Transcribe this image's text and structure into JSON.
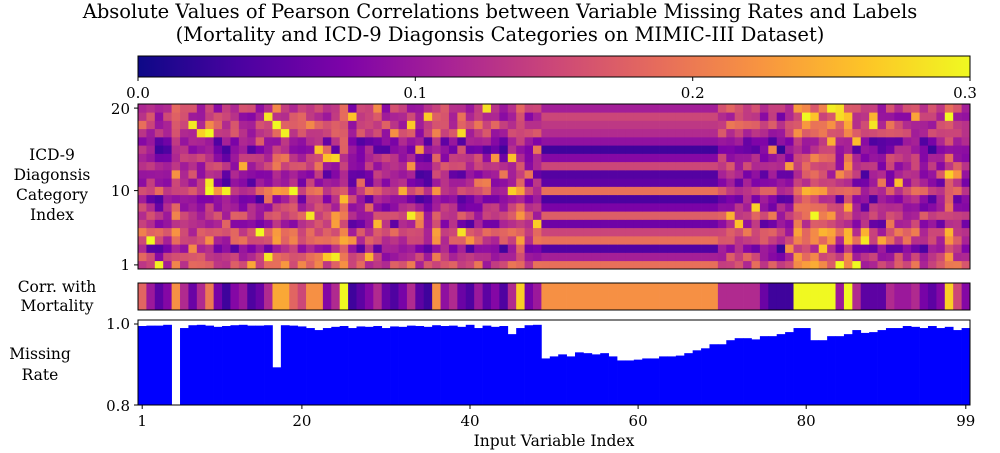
{
  "chart_data": {
    "type": "heatmap",
    "title": "Absolute Values of Pearson Correlations between Variable Missing Rates and Labels",
    "subtitle": "(Mortality and ICD-9 Diagonsis Categories on MIMIC-III Dataset)",
    "colormap": "plasma",
    "colorbar": {
      "min": 0.0,
      "max": 0.3,
      "ticks": [
        "0.0",
        "0.1",
        "0.2",
        "0.3"
      ]
    },
    "x_range": [
      1,
      99
    ],
    "xlabel": "Input Variable Index",
    "xticks": [
      "1",
      "20",
      "40",
      "60",
      "80",
      "99"
    ],
    "heatmap": {
      "ylabel_lines": [
        "ICD-9",
        "Diagonsis",
        "Category",
        "Index"
      ],
      "y_range": [
        1,
        20
      ],
      "yticks": [
        "1",
        "10",
        "20"
      ],
      "n_rows": 20,
      "n_cols": 99
    },
    "mortality": {
      "label_lines": [
        "Corr. with",
        "Mortality"
      ],
      "values": [
        0.18,
        0.1,
        0.05,
        0.08,
        0.22,
        0.12,
        0.06,
        0.12,
        0.2,
        0.07,
        0.03,
        0.08,
        0.1,
        0.04,
        0.06,
        0.12,
        0.24,
        0.24,
        0.18,
        0.15,
        0.22,
        0.22,
        0.08,
        0.12,
        0.3,
        0.03,
        0.05,
        0.08,
        0.12,
        0.06,
        0.04,
        0.07,
        0.12,
        0.05,
        0.03,
        0.22,
        0.09,
        0.12,
        0.06,
        0.04,
        0.1,
        0.05,
        0.08,
        0.04,
        0.12,
        0.27,
        0.07,
        0.1,
        0.22,
        0.22,
        0.22,
        0.22,
        0.22,
        0.22,
        0.22,
        0.22,
        0.22,
        0.22,
        0.22,
        0.22,
        0.22,
        0.22,
        0.22,
        0.22,
        0.22,
        0.22,
        0.22,
        0.22,
        0.22,
        0.12,
        0.12,
        0.12,
        0.12,
        0.12,
        0.06,
        0.03,
        0.03,
        0.03,
        0.3,
        0.3,
        0.3,
        0.3,
        0.3,
        0.1,
        0.3,
        0.12,
        0.05,
        0.05,
        0.05,
        0.12,
        0.1,
        0.1,
        0.12,
        0.07,
        0.05,
        0.08,
        0.27,
        0.15,
        0.08
      ]
    },
    "missing_rate": {
      "label_lines": [
        "Missing",
        "Rate"
      ],
      "yticks": [
        "0.8",
        "1.0"
      ],
      "ylim": [
        0.8,
        1.0
      ],
      "color": "#0000ff",
      "values": [
        0.995,
        0.996,
        0.996,
        0.998,
        0.8,
        0.99,
        0.997,
        0.998,
        0.996,
        0.993,
        0.995,
        0.997,
        0.998,
        0.996,
        0.996,
        0.997,
        0.893,
        0.997,
        0.996,
        0.994,
        0.99,
        0.985,
        0.99,
        0.993,
        0.995,
        0.99,
        0.994,
        0.993,
        0.995,
        0.99,
        0.994,
        0.993,
        0.996,
        0.995,
        0.993,
        0.997,
        0.995,
        0.996,
        0.993,
        0.998,
        0.99,
        0.996,
        0.993,
        0.995,
        0.975,
        0.99,
        0.997,
        0.998,
        0.915,
        0.92,
        0.925,
        0.92,
        0.93,
        0.928,
        0.925,
        0.928,
        0.92,
        0.91,
        0.91,
        0.912,
        0.915,
        0.915,
        0.92,
        0.92,
        0.922,
        0.928,
        0.935,
        0.94,
        0.95,
        0.95,
        0.96,
        0.965,
        0.965,
        0.962,
        0.97,
        0.97,
        0.975,
        0.98,
        0.99,
        0.99,
        0.96,
        0.96,
        0.97,
        0.97,
        0.975,
        0.985,
        0.978,
        0.98,
        0.985,
        0.99,
        0.99,
        0.995,
        0.993,
        0.99,
        0.995,
        0.99,
        0.993,
        0.985,
        0.99
      ]
    }
  }
}
